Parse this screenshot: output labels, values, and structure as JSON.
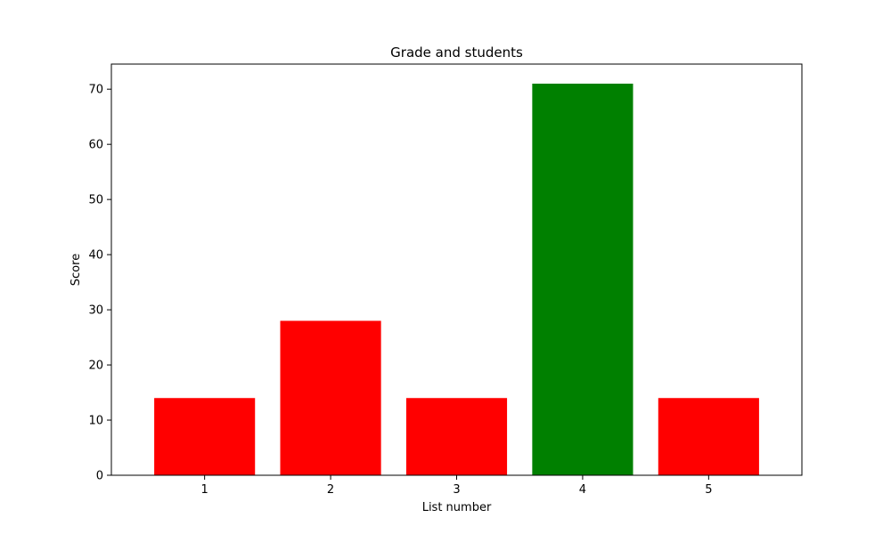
{
  "chart_data": {
    "type": "bar",
    "title": "Grade and students",
    "xlabel": "List number",
    "ylabel": "Score",
    "categories": [
      "1",
      "2",
      "3",
      "4",
      "5"
    ],
    "values": [
      14,
      28,
      14,
      71,
      14
    ],
    "bar_colors": [
      "#ff0000",
      "#ff0000",
      "#ff0000",
      "#008000",
      "#ff0000"
    ],
    "ylim": [
      0,
      74.55
    ],
    "yticks": [
      0,
      10,
      20,
      30,
      40,
      50,
      60,
      70
    ],
    "grid": false
  }
}
